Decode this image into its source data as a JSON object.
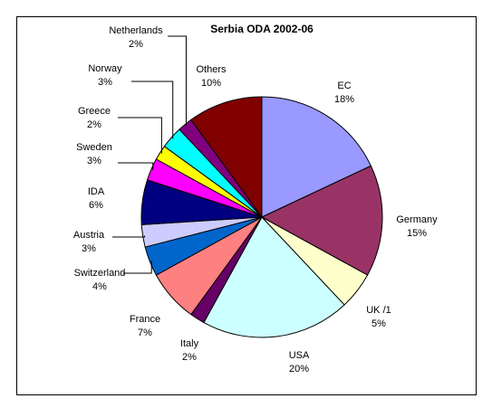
{
  "chart_data": {
    "type": "pie",
    "title": "Serbia ODA 2002-06",
    "categories": [
      "EC",
      "Germany",
      "UK /1",
      "USA",
      "Italy",
      "France",
      "Switzerland",
      "Austria",
      "IDA",
      "Sweden",
      "Greece",
      "Norway",
      "Netherlands",
      "Others"
    ],
    "values": [
      18,
      15,
      5,
      20,
      2,
      7,
      4,
      3,
      6,
      3,
      2,
      3,
      2,
      10
    ],
    "value_labels": [
      "18%",
      "15%",
      "5%",
      "20%",
      "2%",
      "7%",
      "4%",
      "3%",
      "6%",
      "3%",
      "2%",
      "3%",
      "2%",
      "10%"
    ],
    "colors": [
      "#9999ff",
      "#993366",
      "#ffffcc",
      "#ccffff",
      "#660066",
      "#ff8080",
      "#0066cc",
      "#ccccff",
      "#000080",
      "#ff00ff",
      "#ffff00",
      "#00ffff",
      "#800080",
      "#800000"
    ]
  }
}
